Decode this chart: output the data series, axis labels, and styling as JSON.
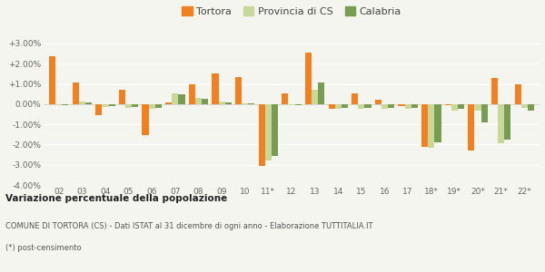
{
  "categories": [
    "02",
    "03",
    "04",
    "05",
    "06",
    "07",
    "08",
    "09",
    "10",
    "11*",
    "12",
    "13",
    "14",
    "15",
    "16",
    "17",
    "18*",
    "19*",
    "20*",
    "21*",
    "22*"
  ],
  "tortora": [
    2.35,
    1.05,
    -0.55,
    0.7,
    -1.55,
    0.1,
    1.0,
    1.5,
    1.35,
    -3.05,
    0.55,
    2.55,
    -0.25,
    0.55,
    0.2,
    -0.1,
    -2.1,
    -0.05,
    -2.3,
    1.3,
    1.0
  ],
  "provincia_cs": [
    -0.05,
    0.15,
    -0.15,
    -0.2,
    -0.25,
    0.55,
    0.3,
    0.15,
    0.05,
    -2.8,
    -0.05,
    0.7,
    -0.25,
    -0.25,
    -0.25,
    -0.25,
    -2.15,
    -0.3,
    -0.3,
    -1.95,
    -0.2
  ],
  "calabria": [
    -0.05,
    0.1,
    -0.1,
    -0.15,
    -0.2,
    0.5,
    0.25,
    0.1,
    0.05,
    -2.55,
    -0.05,
    1.05,
    -0.2,
    -0.2,
    -0.2,
    -0.2,
    -1.9,
    -0.25,
    -0.9,
    -1.75,
    -0.3
  ],
  "color_tortora": "#f28020",
  "color_provincia": "#c8d89a",
  "color_calabria": "#7a9c52",
  "ylim": [
    -4.0,
    3.0
  ],
  "yticks": [
    -4.0,
    -3.0,
    -2.0,
    -1.0,
    0.0,
    1.0,
    2.0,
    3.0
  ],
  "title": "Variazione percentuale della popolazione",
  "subtitle": "COMUNE DI TORTORA (CS) - Dati ISTAT al 31 dicembre di ogni anno - Elaborazione TUTTITALIA.IT",
  "footnote": "(*) post-censimento",
  "legend_labels": [
    "Tortora",
    "Provincia di CS",
    "Calabria"
  ],
  "background_color": "#f5f5f0",
  "bar_width": 0.28
}
